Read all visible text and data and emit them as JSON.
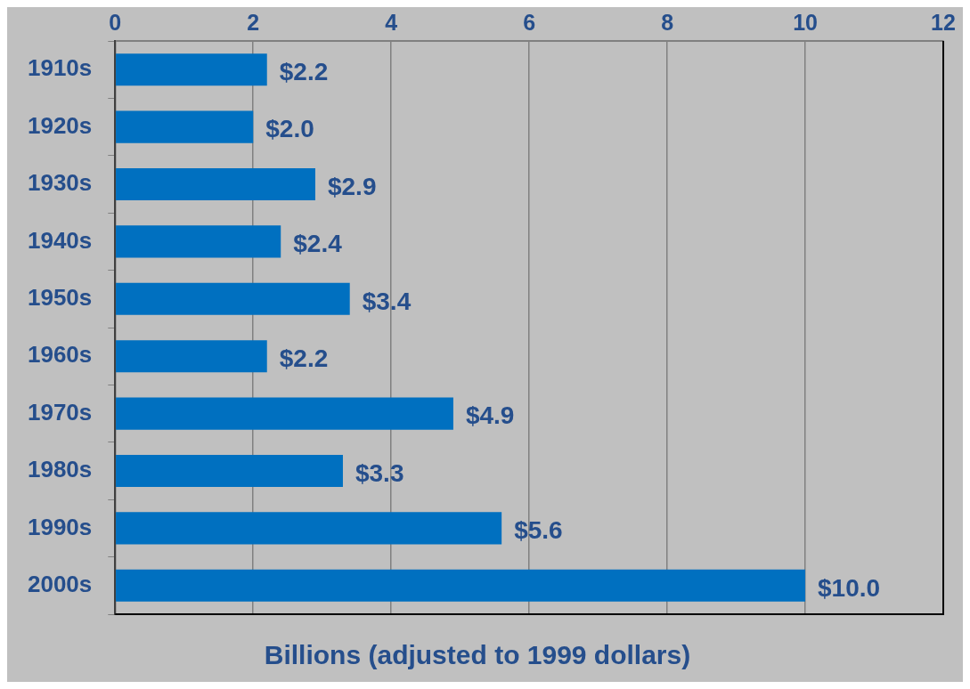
{
  "chart_data": {
    "type": "bar",
    "orientation": "horizontal",
    "xlabel": "Billions (adjusted to 1999 dollars)",
    "categories": [
      "1910s",
      "1920s",
      "1930s",
      "1940s",
      "1950s",
      "1960s",
      "1970s",
      "1980s",
      "1990s",
      "2000s"
    ],
    "values": [
      2.2,
      2.0,
      2.9,
      2.4,
      3.4,
      2.2,
      4.9,
      3.3,
      5.6,
      10.0
    ],
    "value_labels": [
      "$2.2",
      "$2.0",
      "$2.9",
      "$2.4",
      "$3.4",
      "$2.2",
      "$4.9",
      "$3.3",
      "$5.6",
      "$10.0"
    ],
    "color": "#0070c0",
    "xlim": [
      0,
      12
    ],
    "xticks": [
      0,
      2,
      4,
      6,
      8,
      10,
      12
    ],
    "grid": "x",
    "legend": false
  }
}
